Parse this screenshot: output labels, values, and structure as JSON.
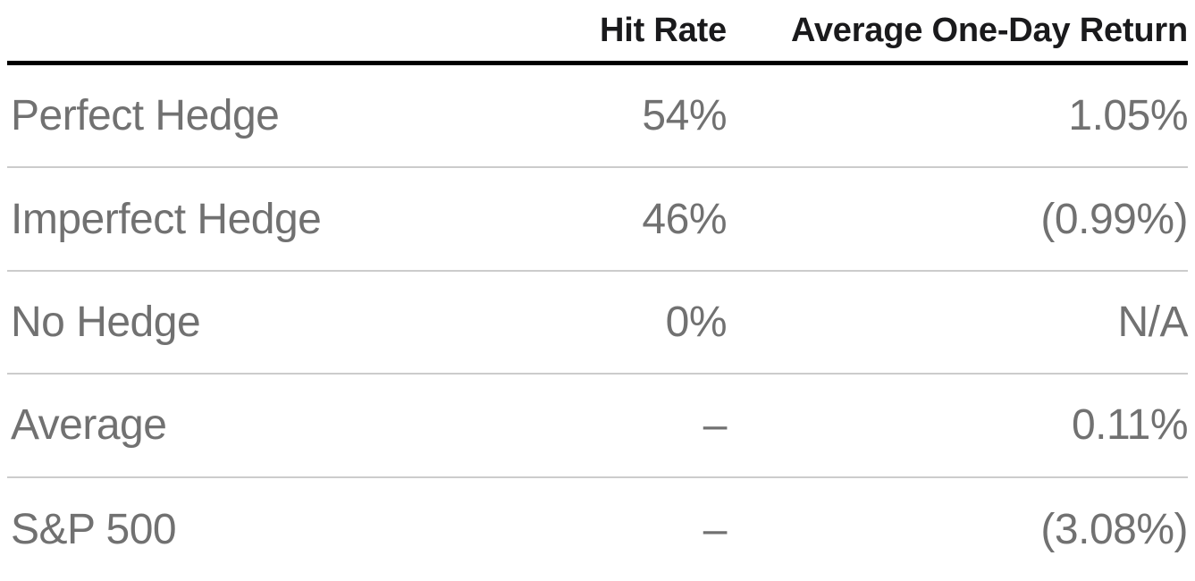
{
  "chart_data": {
    "type": "table",
    "title": "",
    "columns": [
      "",
      "Hit Rate",
      "Average One-Day Return"
    ],
    "rows": [
      [
        "Perfect Hedge",
        "54%",
        "1.05%"
      ],
      [
        "Imperfect Hedge",
        "46%",
        "(0.99%)"
      ],
      [
        "No Hedge",
        "0%",
        "N/A"
      ],
      [
        "Average",
        "–",
        "0.11%"
      ],
      [
        "S&P 500",
        "–",
        "(3.08%)"
      ]
    ],
    "numeric_values": {
      "hit_rate_percent": [
        54,
        46,
        0,
        null,
        null
      ],
      "average_one_day_return_percent": [
        1.05,
        -0.99,
        null,
        0.11,
        -3.08
      ]
    },
    "layout": {
      "column_alignment": [
        "left",
        "right",
        "right"
      ],
      "header_rule": "thick-black",
      "row_divider": "thin-light-gray"
    }
  },
  "colors": {
    "background": "#ffffff",
    "header_text": "#1a1a1c",
    "body_text": "#717171",
    "header_rule": "#000000",
    "row_divider": "#cccccc"
  }
}
